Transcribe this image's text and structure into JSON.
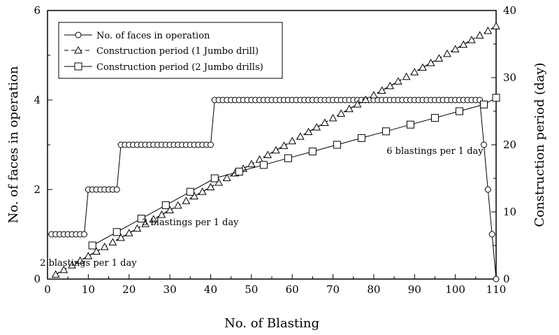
{
  "chart_data": {
    "type": "line",
    "xlabel": "No. of Blasting",
    "ylabel_left": "No. of faces in operation",
    "ylabel_right": "Construction period (day)",
    "xlim": [
      0,
      110
    ],
    "ylim_left": [
      0,
      6
    ],
    "ylim_right": [
      0,
      40
    ],
    "x_ticks": [
      0,
      10,
      20,
      30,
      40,
      50,
      60,
      70,
      80,
      90,
      100,
      110
    ],
    "y_left_ticks": [
      0,
      2,
      4,
      6
    ],
    "y_right_ticks": [
      0,
      10,
      20,
      30,
      40
    ],
    "grid": false,
    "legend_position": "top-left",
    "series": [
      {
        "name": "No. of faces in operation",
        "axis": "left",
        "marker": "circle",
        "line": "solid",
        "segments": [
          {
            "x_from": 1,
            "x_to": 9,
            "y": 1
          },
          {
            "x_from": 10,
            "x_to": 17,
            "y": 2
          },
          {
            "x_from": 18,
            "x_to": 40,
            "y": 3
          },
          {
            "x_from": 41,
            "x_to": 106,
            "y": 4
          }
        ],
        "tail": [
          [
            107,
            3
          ],
          [
            108,
            2
          ],
          [
            109,
            1
          ],
          [
            110,
            0
          ]
        ]
      },
      {
        "name": "Construction period (1 Jumbo drill)",
        "axis": "right",
        "marker": "triangle",
        "line": "dashed",
        "x_start": 2,
        "x_end": 110,
        "x_step": 2,
        "y_per_x": 0.3424
      },
      {
        "name": "Construction period (2 Jumbo drills)",
        "axis": "right",
        "marker": "square",
        "line": "solid",
        "points": [
          [
            11,
            5
          ],
          [
            17,
            7
          ],
          [
            23,
            9
          ],
          [
            29,
            11
          ],
          [
            35,
            13
          ],
          [
            41,
            15
          ],
          [
            47,
            16
          ],
          [
            53,
            17
          ],
          [
            59,
            18
          ],
          [
            65,
            19
          ],
          [
            71,
            20
          ],
          [
            77,
            21
          ],
          [
            83,
            22
          ],
          [
            89,
            23
          ],
          [
            95,
            24
          ],
          [
            101,
            25
          ],
          [
            107,
            26
          ],
          [
            110,
            27
          ]
        ]
      }
    ],
    "annotations": [
      {
        "text": "2 blastings per 1 day",
        "x": 10,
        "y_left": 0.3
      },
      {
        "text": "3 blastings per 1 day",
        "x": 35,
        "y_left": 1.2
      },
      {
        "text": "6 blastings per 1 day",
        "x": 95,
        "y_left": 2.8
      }
    ]
  }
}
